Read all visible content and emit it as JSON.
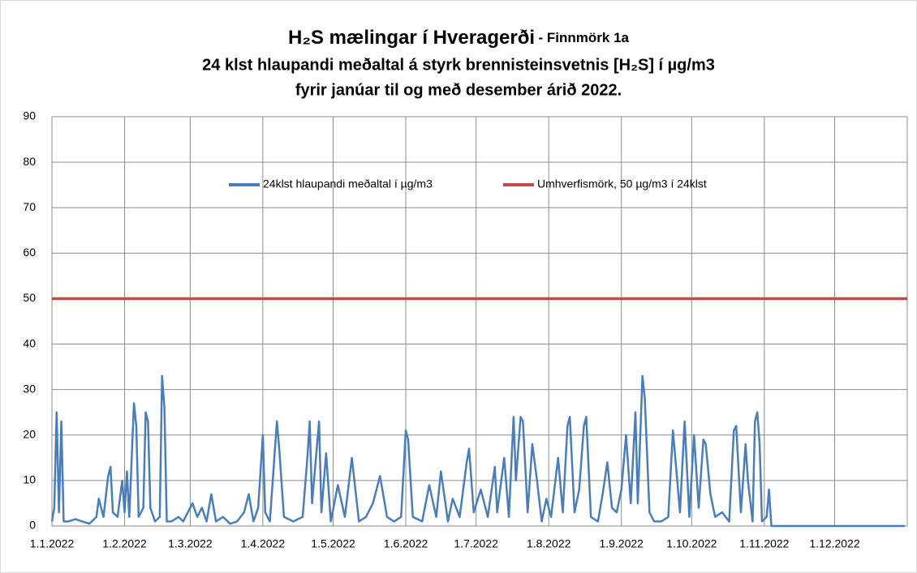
{
  "chart_data": {
    "type": "line",
    "title": {
      "main": "H₂S mælingar í Hveragerði",
      "suffix": "- Finnmörk 1a"
    },
    "subtitle": [
      "24 klst hlaupandi meðaltal á styrk brennisteinsvetnis [H₂S] í µg/m3",
      "fyrir janúar til og með desember árið 2022."
    ],
    "xlim": [
      "1.1.2022",
      "1.1.2023"
    ],
    "xticks": [
      "1.1.2022",
      "1.2.2022",
      "1.3.2022",
      "1.4.2022",
      "1.5.2022",
      "1.6.2022",
      "1.7.2022",
      "1.8.2022",
      "1.9.2022",
      "1.10.2022",
      "1.11.2022",
      "1.12.2022"
    ],
    "ylim": [
      0,
      90
    ],
    "yticks": [
      0,
      10,
      20,
      30,
      40,
      50,
      60,
      70,
      80,
      90
    ],
    "grid": true,
    "legend": "top",
    "series": [
      {
        "name": "24klst hlaupandi meðaltal í µg/m3",
        "color": "#4a7ebb",
        "x": [
          "1.1.2022",
          "2.1.2022",
          "3.1.2022",
          "4.1.2022",
          "5.1.2022",
          "6.1.2022",
          "8.1.2022",
          "11.1.2022",
          "14.1.2022",
          "17.1.2022",
          "20.1.2022",
          "21.1.2022",
          "23.1.2022",
          "25.1.2022",
          "26.1.2022",
          "27.1.2022",
          "29.1.2022",
          "31.1.2022",
          "1.2.2022",
          "2.2.2022",
          "3.2.2022",
          "5.2.2022",
          "6.2.2022",
          "7.2.2022",
          "9.2.2022",
          "10.2.2022",
          "11.2.2022",
          "12.2.2022",
          "14.2.2022",
          "16.2.2022",
          "17.2.2022",
          "18.2.2022",
          "19.2.2022",
          "21.2.2022",
          "24.2.2022",
          "26.2.2022",
          "28.2.2022",
          "2.3.2022",
          "4.3.2022",
          "6.3.2022",
          "8.3.2022",
          "10.3.2022",
          "12.3.2022",
          "15.3.2022",
          "18.3.2022",
          "21.3.2022",
          "24.3.2022",
          "26.3.2022",
          "28.3.2022",
          "30.3.2022",
          "1.4.2022",
          "2.4.2022",
          "4.4.2022",
          "7.4.2022",
          "8.4.2022",
          "10.4.2022",
          "14.4.2022",
          "18.4.2022",
          "20.4.2022",
          "21.4.2022",
          "22.4.2022",
          "25.4.2022",
          "26.4.2022",
          "28.4.2022",
          "30.4.2022",
          "3.5.2022",
          "6.5.2022",
          "9.5.2022",
          "12.5.2022",
          "15.5.2022",
          "18.5.2022",
          "21.5.2022",
          "24.5.2022",
          "27.5.2022",
          "30.5.2022",
          "1.6.2022",
          "2.6.2022",
          "4.6.2022",
          "8.6.2022",
          "11.6.2022",
          "14.6.2022",
          "16.6.2022",
          "19.6.2022",
          "21.6.2022",
          "24.6.2022",
          "27.6.2022",
          "28.6.2022",
          "30.6.2022",
          "3.7.2022",
          "6.7.2022",
          "9.7.2022",
          "10.7.2022",
          "13.7.2022",
          "15.7.2022",
          "17.7.2022",
          "18.7.2022",
          "20.7.2022",
          "21.7.2022",
          "23.7.2022",
          "25.7.2022",
          "27.7.2022",
          "29.7.2022",
          "31.7.2022",
          "2.8.2022",
          "5.8.2022",
          "7.8.2022",
          "9.8.2022",
          "10.8.2022",
          "12.8.2022",
          "14.8.2022",
          "16.8.2022",
          "17.8.2022",
          "19.8.2022",
          "22.8.2022",
          "24.8.2022",
          "26.8.2022",
          "28.8.2022",
          "30.8.2022",
          "1.9.2022",
          "3.9.2022",
          "5.9.2022",
          "7.9.2022",
          "8.9.2022",
          "10.9.2022",
          "11.9.2022",
          "13.9.2022",
          "15.9.2022",
          "18.9.2022",
          "21.9.2022",
          "23.9.2022",
          "24.9.2022",
          "26.9.2022",
          "28.9.2022",
          "30.9.2022",
          "2.10.2022",
          "4.10.2022",
          "6.10.2022",
          "7.10.2022",
          "9.10.2022",
          "11.10.2022",
          "14.10.2022",
          "17.10.2022",
          "19.10.2022",
          "20.10.2022",
          "22.10.2022",
          "24.10.2022",
          "25.10.2022",
          "27.10.2022",
          "28.10.2022",
          "29.10.2022",
          "30.10.2022",
          "31.10.2022",
          "2.11.2022",
          "3.11.2022",
          "4.11.2022",
          "15.11.2022",
          "1.12.2022",
          "31.12.2022"
        ],
        "values": [
          1,
          4,
          25,
          3,
          23,
          1,
          1,
          1.5,
          1,
          0.5,
          2,
          6,
          2,
          11,
          13,
          3,
          2,
          10,
          3,
          12,
          2,
          27,
          22,
          2,
          4,
          25,
          23,
          4,
          1,
          2,
          33,
          26,
          1,
          1,
          2,
          1,
          3,
          5,
          2,
          4,
          1,
          7,
          1,
          2,
          0.5,
          1,
          3,
          7,
          1,
          4,
          20,
          3,
          1,
          23,
          17,
          2,
          1,
          2,
          15,
          23,
          5,
          23,
          3,
          16,
          1,
          9,
          2,
          15,
          1,
          2,
          5,
          11,
          2,
          1,
          2,
          21,
          19,
          2,
          1,
          9,
          2,
          12,
          1,
          6,
          2,
          14,
          17,
          3,
          8,
          2,
          13,
          3,
          15,
          2,
          24,
          10,
          24,
          23,
          3,
          18,
          10,
          1,
          6,
          2,
          15,
          3,
          22,
          24,
          3,
          8,
          22,
          24,
          2,
          1,
          7,
          14,
          4,
          3,
          8,
          20,
          5,
          25,
          5,
          33,
          28,
          3,
          1,
          1,
          2,
          21,
          15,
          3,
          23,
          2,
          20,
          4,
          19,
          18,
          7,
          2,
          3,
          1,
          21,
          22,
          3,
          18,
          10,
          1,
          23,
          25,
          18,
          1,
          2,
          8,
          0,
          0,
          0,
          0
        ]
      },
      {
        "name": "Umhverfismörk, 50 µg/m3 í 24klst",
        "color": "#be4b48",
        "x": [
          "1.1.2022",
          "1.1.2023"
        ],
        "values": [
          50,
          50
        ]
      }
    ]
  }
}
